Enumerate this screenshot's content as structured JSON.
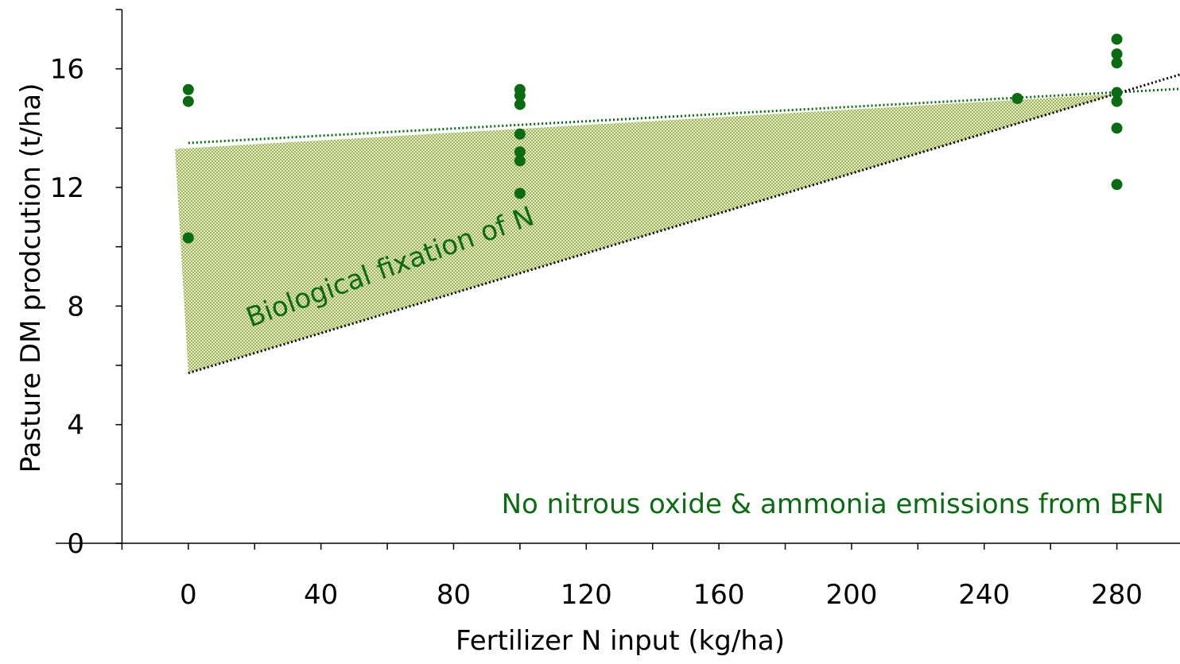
{
  "chart_data": {
    "type": "scatter",
    "xlabel": "Fertilizer N input (kg/ha)",
    "ylabel": "Pasture DM prodcution (t/ha)",
    "xlim": [
      -40,
      300
    ],
    "ylim": [
      0,
      18
    ],
    "xticks": [
      0,
      40,
      80,
      120,
      160,
      200,
      240,
      280
    ],
    "xminorticks": [
      -20,
      20,
      60,
      100,
      140,
      180,
      220,
      260,
      300
    ],
    "yticks": [
      0,
      4,
      8,
      12,
      16
    ],
    "yminorticks": [
      2,
      6,
      10,
      14,
      18
    ],
    "color": "#0b6b12",
    "points": {
      "x": [
        0,
        0,
        0,
        100,
        100,
        100,
        100,
        100,
        100,
        100,
        250,
        280,
        280,
        280,
        280,
        280,
        280,
        280
      ],
      "y": [
        15.3,
        14.9,
        10.3,
        15.3,
        15.1,
        14.8,
        13.8,
        13.2,
        12.9,
        11.8,
        15.0,
        17.0,
        16.5,
        16.2,
        15.2,
        14.9,
        14.0,
        12.1
      ]
    },
    "lines": [
      {
        "color": "#0b6b12",
        "x": [
          0,
          300
        ],
        "y": [
          13.5,
          15.33
        ]
      },
      {
        "color": "#000000",
        "x": [
          0,
          300
        ],
        "y": [
          5.74,
          15.84
        ]
      }
    ],
    "region": {
      "color": "#c3d08e",
      "x": [
        -4,
        280,
        0
      ],
      "y": [
        13.3,
        15.15,
        5.74
      ]
    },
    "annotations": [
      "Biological fixation of N",
      "No nitrous oxide & ammonia emissions from BFN"
    ]
  }
}
